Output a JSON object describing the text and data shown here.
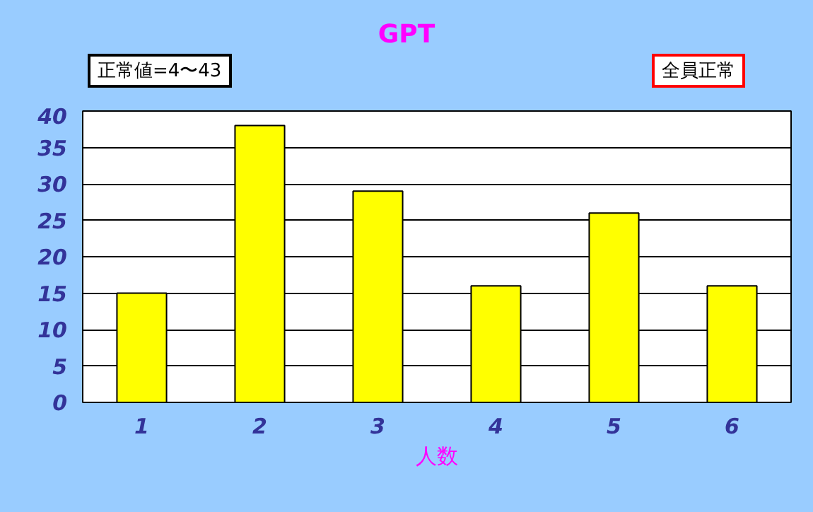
{
  "chart_data": {
    "type": "bar",
    "title": "GPT",
    "xlabel": "人数",
    "categories": [
      "1",
      "2",
      "3",
      "4",
      "5",
      "6"
    ],
    "values": [
      15,
      38,
      29,
      16,
      26,
      16
    ],
    "color": "#ffff00",
    "ylim": [
      0,
      40
    ],
    "yticks": [
      0,
      5,
      10,
      15,
      20,
      25,
      30,
      35,
      40
    ],
    "grid": "y",
    "annotations": [
      "正常値=4〜43",
      "全員正常"
    ]
  }
}
